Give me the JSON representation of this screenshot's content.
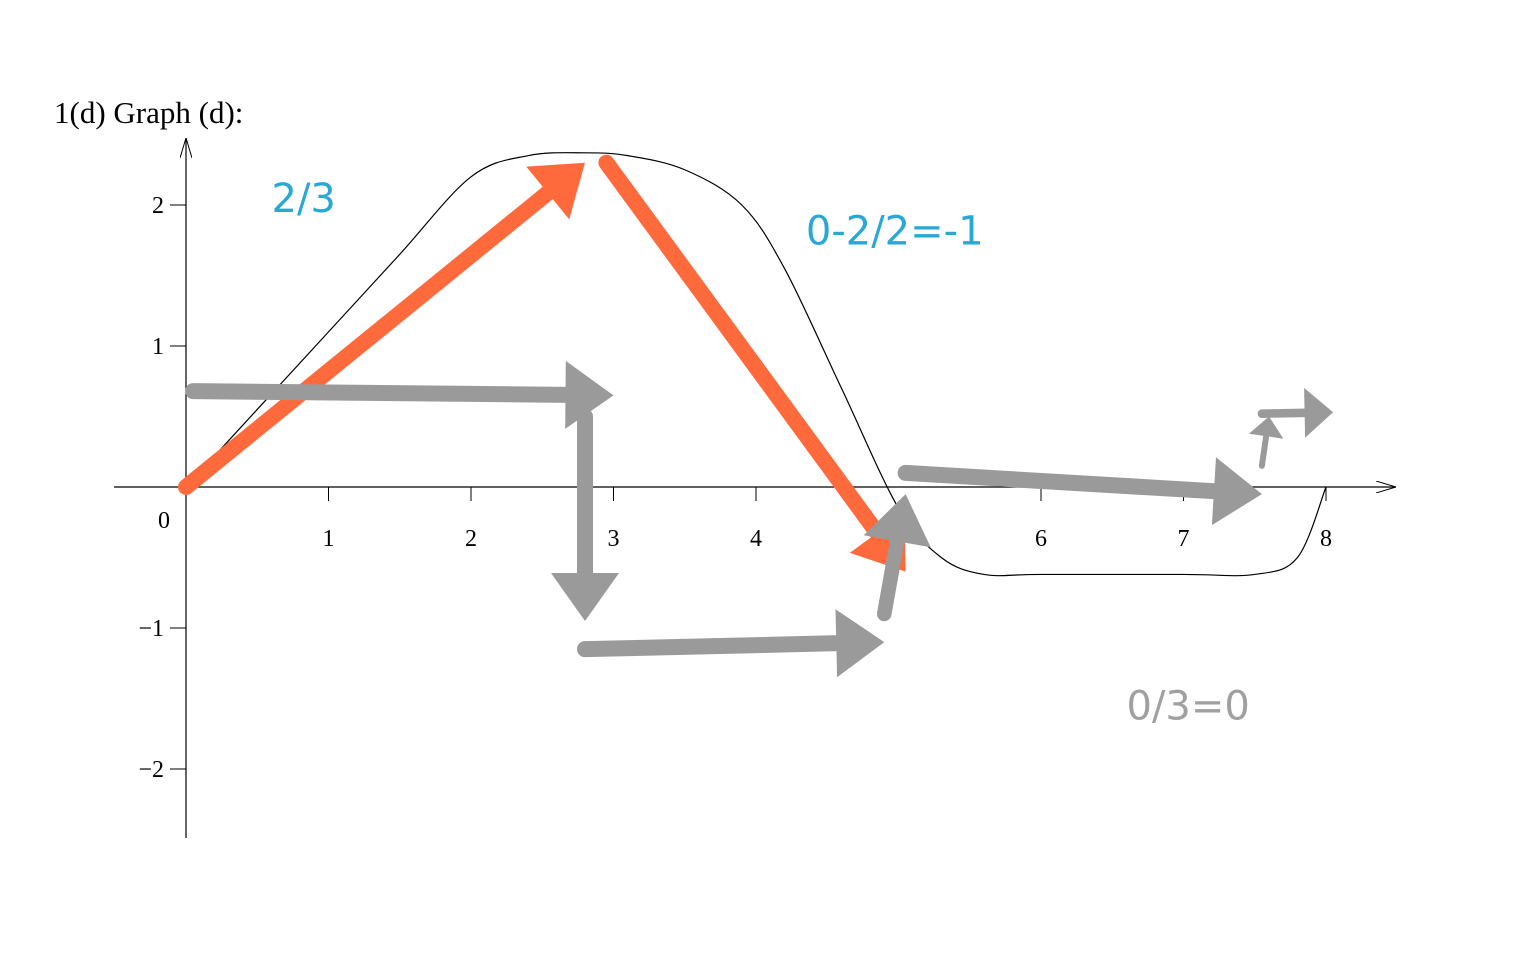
{
  "chart_data": {
    "type": "line",
    "title": "1(d) Graph (d):",
    "xlabel": "",
    "ylabel": "",
    "xlim": [
      0,
      8.5
    ],
    "ylim": [
      -2.5,
      2.5
    ],
    "x_ticks": [
      1,
      2,
      3,
      4,
      6,
      7,
      8
    ],
    "x_tick_labels": [
      "1",
      "2",
      "3",
      "4",
      "6",
      "7",
      "8"
    ],
    "origin_label": "0",
    "y_ticks": [
      2,
      1,
      -1,
      -2
    ],
    "y_tick_labels": [
      "2",
      "1",
      "−1",
      "−2"
    ],
    "grid": false,
    "series": [
      {
        "color": "#000000",
        "x": [
          0,
          0.5,
          1,
          1.5,
          2,
          2.4,
          2.8,
          3.1,
          3.5,
          3.9,
          4.2,
          4.6,
          5.0,
          5.3,
          5.6,
          6,
          7,
          7.5,
          7.8,
          8
        ],
        "y": [
          0,
          0.55,
          1.1,
          1.65,
          2.2,
          2.35,
          2.37,
          2.35,
          2.25,
          2.0,
          1.55,
          0.7,
          -0.15,
          -0.5,
          -0.62,
          -0.62,
          -0.62,
          -0.62,
          -0.5,
          0
        ]
      }
    ],
    "annotations": [
      {
        "text": "2/3",
        "color": "#29a8d6",
        "x": 0.6,
        "y": 1.95
      },
      {
        "text": "0-2/2=-1",
        "color": "#29a8d6",
        "x": 4.35,
        "y": 1.72
      },
      {
        "text": "0/3=0",
        "color": "#a0a0a0",
        "x": 6.6,
        "y": -1.65
      }
    ],
    "arrows": [
      {
        "color": "#ff6a3d",
        "from": [
          0,
          0
        ],
        "to": [
          2.8,
          2.3
        ]
      },
      {
        "color": "#ff6a3d",
        "from": [
          2.95,
          2.3
        ],
        "to": [
          5.05,
          -0.6
        ]
      },
      {
        "color": "#9a9a9a",
        "from": [
          0.05,
          0.68
        ],
        "to": [
          3.0,
          0.65
        ]
      },
      {
        "color": "#9a9a9a",
        "from": [
          2.8,
          0.5
        ],
        "to": [
          2.8,
          -0.95
        ]
      },
      {
        "color": "#9a9a9a",
        "from": [
          2.8,
          -1.15
        ],
        "to": [
          4.9,
          -1.1
        ]
      },
      {
        "color": "#9a9a9a",
        "from": [
          4.9,
          -0.9
        ],
        "to": [
          5.05,
          -0.05
        ]
      },
      {
        "color": "#9a9a9a",
        "from": [
          5.05,
          0.1
        ],
        "to": [
          7.55,
          -0.05
        ]
      },
      {
        "color": "#9a9a9a",
        "from": [
          7.55,
          0.15
        ],
        "to": [
          7.6,
          0.5
        ]
      },
      {
        "color": "#9a9a9a",
        "from": [
          7.55,
          0.52
        ],
        "to": [
          8.05,
          0.53
        ]
      }
    ]
  }
}
